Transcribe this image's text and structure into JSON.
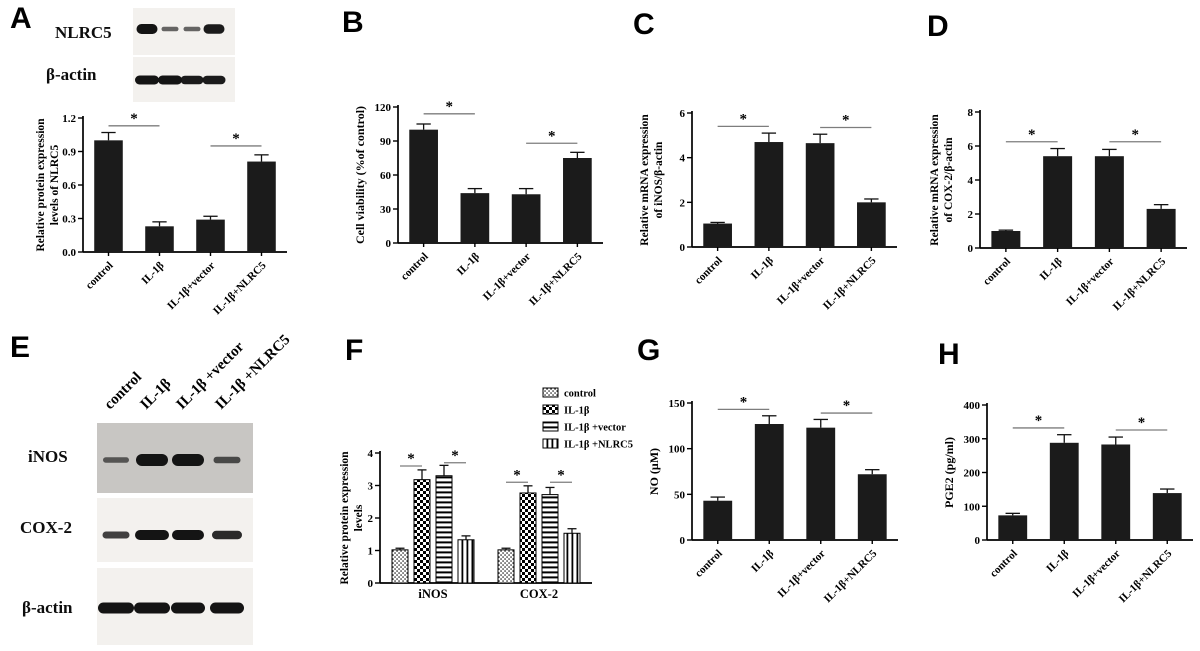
{
  "colors": {
    "bar_fill": "#1b1b1b",
    "axis": "#000000",
    "sig_line": "#7d7d7d",
    "blot_band": "#141414",
    "blot_bg_light": "#f3f1ee",
    "blot_bg_dark": "#c8c6c3"
  },
  "panels": {
    "A": {
      "letter": "A",
      "blot": {
        "rows": [
          {
            "label": "NLRC5",
            "band_intensities": [
              1,
              0.45,
              0.45,
              0.95
            ]
          },
          {
            "label": "β-actin",
            "band_intensities": [
              1,
              1,
              0.95,
              0.95
            ]
          }
        ]
      }
    },
    "B": {
      "letter": "B"
    },
    "C": {
      "letter": "C"
    },
    "D": {
      "letter": "D"
    },
    "E": {
      "letter": "E",
      "lane_labels": [
        "control",
        "IL-1β",
        "IL-1β +vector",
        "IL-1β +NLRC5"
      ],
      "blot": {
        "rows": [
          {
            "label": "iNOS",
            "background": "dark",
            "band_intensities": [
              0.45,
              1,
              1,
              0.55
            ]
          },
          {
            "label": "COX-2",
            "background": "light",
            "band_intensities": [
              0.7,
              1,
              1,
              0.85
            ]
          },
          {
            "label": "β-actin",
            "background": "light",
            "band_intensities": [
              1,
              1,
              1,
              1
            ]
          }
        ]
      }
    },
    "F": {
      "letter": "F"
    },
    "G": {
      "letter": "G"
    },
    "H": {
      "letter": "H"
    }
  },
  "chart_data": [
    {
      "panel": "A",
      "type": "bar",
      "categories": [
        "control",
        "IL-1β",
        "IL-1β+vector",
        "IL-1β+NLRC5"
      ],
      "values": [
        1.0,
        0.23,
        0.29,
        0.81
      ],
      "errors": [
        0.07,
        0.04,
        0.03,
        0.06
      ],
      "ylabel_lines": [
        "Relative  protein expression",
        "levels of NLRC5"
      ],
      "ylim": [
        0,
        1.2
      ],
      "ytick_labels": [
        "0.0",
        "0.3",
        "0.6",
        "0.9",
        "1.2"
      ],
      "significance": [
        {
          "bars": [
            0,
            1
          ],
          "y": 1.13,
          "label": "*"
        },
        {
          "bars": [
            2,
            3
          ],
          "y": 0.95,
          "label": "*"
        }
      ]
    },
    {
      "panel": "B",
      "type": "bar",
      "categories": [
        "control",
        "IL-1β",
        "IL-1β+vector",
        "IL-1β+NLRC5"
      ],
      "values": [
        100,
        44,
        43,
        75
      ],
      "errors": [
        5,
        4,
        5,
        5
      ],
      "ylabel_lines": [
        "Cell viability  (%of control)"
      ],
      "ylim": [
        0,
        120
      ],
      "ytick_labels": [
        "0",
        "30",
        "60",
        "90",
        "120"
      ],
      "significance": [
        {
          "bars": [
            0,
            1
          ],
          "y": 114,
          "label": "*"
        },
        {
          "bars": [
            2,
            3
          ],
          "y": 88,
          "label": "*"
        }
      ]
    },
    {
      "panel": "C",
      "type": "bar",
      "categories": [
        "control",
        "IL-1β",
        "IL-1β+vector",
        "IL-1β+NLRC5"
      ],
      "values": [
        1.05,
        4.7,
        4.65,
        2.0
      ],
      "errors": [
        0.05,
        0.4,
        0.4,
        0.15
      ],
      "ylabel_lines": [
        "Relative mRNA expression",
        "of iNOS/β-actin"
      ],
      "ylim": [
        0,
        6
      ],
      "ytick_labels": [
        "0",
        "2",
        "4",
        "6"
      ],
      "significance": [
        {
          "bars": [
            0,
            1
          ],
          "y": 5.4,
          "label": "*"
        },
        {
          "bars": [
            2,
            3
          ],
          "y": 5.35,
          "label": "*"
        }
      ]
    },
    {
      "panel": "D",
      "type": "bar",
      "categories": [
        "control",
        "IL-1β",
        "IL-1β+vector",
        "IL-1β+NLRC5"
      ],
      "values": [
        1.0,
        5.4,
        5.4,
        2.3
      ],
      "errors": [
        0.05,
        0.45,
        0.4,
        0.25
      ],
      "ylabel_lines": [
        "Relative mRNA expression",
        "of COX-2/β-actin"
      ],
      "ylim": [
        0,
        8
      ],
      "ytick_labels": [
        "0",
        "2",
        "4",
        "6",
        "8"
      ],
      "significance": [
        {
          "bars": [
            0,
            1
          ],
          "y": 6.25,
          "label": "*"
        },
        {
          "bars": [
            2,
            3
          ],
          "y": 6.25,
          "label": "*"
        }
      ]
    },
    {
      "panel": "F",
      "type": "grouped_bar",
      "categories": [
        "iNOS",
        "COX-2"
      ],
      "series": [
        {
          "name": "control",
          "fill_pattern": "stipple",
          "values": [
            1.02,
            1.02
          ],
          "errors": [
            0.05,
            0.05
          ]
        },
        {
          "name": "IL-1β",
          "fill_pattern": "checker",
          "values": [
            3.18,
            2.77
          ],
          "errors": [
            0.3,
            0.22
          ]
        },
        {
          "name": "IL-1β +vector",
          "fill_pattern": "hlines",
          "values": [
            3.3,
            2.72
          ],
          "errors": [
            0.32,
            0.22
          ]
        },
        {
          "name": "IL-1β +NLRC5",
          "fill_pattern": "vlines",
          "values": [
            1.33,
            1.53
          ],
          "errors": [
            0.12,
            0.14
          ]
        }
      ],
      "ylabel_lines": [
        "Relative  protein expression",
        "levels"
      ],
      "ylim": [
        0,
        4
      ],
      "ytick_labels": [
        "0",
        "1",
        "2",
        "3",
        "4"
      ],
      "legend_position": "top-right",
      "significance": [
        {
          "group": 0,
          "bars": [
            0,
            1
          ],
          "y": 3.6,
          "label": "*"
        },
        {
          "group": 0,
          "bars": [
            2,
            3
          ],
          "y": 3.7,
          "label": "*"
        },
        {
          "group": 1,
          "bars": [
            0,
            1
          ],
          "y": 3.1,
          "label": "*"
        },
        {
          "group": 1,
          "bars": [
            2,
            3
          ],
          "y": 3.1,
          "label": "*"
        }
      ]
    },
    {
      "panel": "G",
      "type": "bar",
      "categories": [
        "control",
        "IL-1β",
        "IL-1β+vector",
        "IL-1β+NLRC5"
      ],
      "values": [
        43,
        127,
        123,
        72
      ],
      "errors": [
        4,
        9,
        9,
        5
      ],
      "ylabel_lines": [
        "NO (μM)"
      ],
      "ylim": [
        0,
        150
      ],
      "ytick_labels": [
        "0",
        "50",
        "100",
        "150"
      ],
      "significance": [
        {
          "bars": [
            0,
            1
          ],
          "y": 143,
          "label": "*"
        },
        {
          "bars": [
            2,
            3
          ],
          "y": 139,
          "label": "*"
        }
      ]
    },
    {
      "panel": "H",
      "type": "bar",
      "categories": [
        "control",
        "IL-1β",
        "IL-1β+vector",
        "IL-1β+NLRC5"
      ],
      "values": [
        73,
        288,
        283,
        139
      ],
      "errors": [
        6,
        24,
        22,
        12
      ],
      "ylabel_lines": [
        "PGE2 (pg/ml)"
      ],
      "ylim": [
        0,
        400
      ],
      "ytick_labels": [
        "0",
        "100",
        "200",
        "300",
        "400"
      ],
      "significance": [
        {
          "bars": [
            0,
            1
          ],
          "y": 332,
          "label": "*"
        },
        {
          "bars": [
            2,
            3
          ],
          "y": 326,
          "label": "*"
        }
      ]
    }
  ]
}
